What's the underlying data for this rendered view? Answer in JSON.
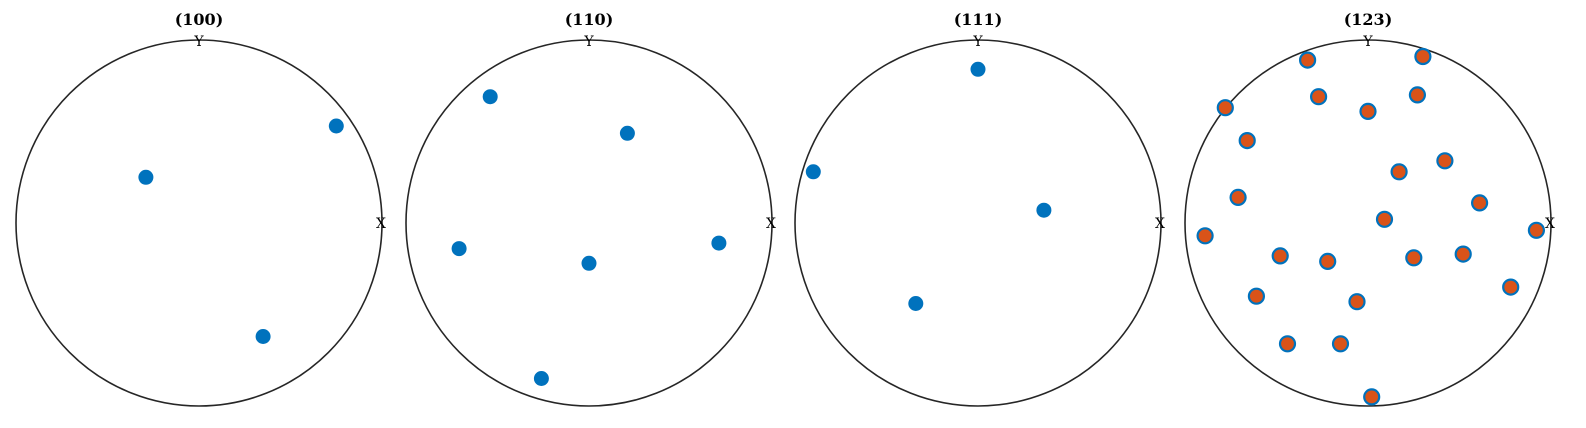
{
  "chart_data": [
    {
      "type": "scatter",
      "title": "(100)",
      "axis_labels": {
        "x": "X",
        "y": "Y"
      },
      "xlim": [
        -1,
        1
      ],
      "ylim": [
        -1,
        1
      ],
      "marker": {
        "face": "#0072bd",
        "edge": "#0072bd"
      },
      "points": [
        {
          "x": 0.75,
          "y": 0.53
        },
        {
          "x": -0.29,
          "y": 0.25
        },
        {
          "x": 0.35,
          "y": -0.62
        }
      ]
    },
    {
      "type": "scatter",
      "title": "(110)",
      "axis_labels": {
        "x": "X",
        "y": "Y"
      },
      "xlim": [
        -1,
        1
      ],
      "ylim": [
        -1,
        1
      ],
      "marker": {
        "face": "#0072bd",
        "edge": "#0072bd"
      },
      "points": [
        {
          "x": -0.54,
          "y": 0.69
        },
        {
          "x": 0.21,
          "y": 0.49
        },
        {
          "x": -0.71,
          "y": -0.14
        },
        {
          "x": 0.0,
          "y": -0.22
        },
        {
          "x": 0.71,
          "y": -0.11
        },
        {
          "x": -0.26,
          "y": -0.85
        }
      ]
    },
    {
      "type": "scatter",
      "title": "(111)",
      "axis_labels": {
        "x": "X",
        "y": "Y"
      },
      "xlim": [
        -1,
        1
      ],
      "ylim": [
        -1,
        1
      ],
      "marker": {
        "face": "#0072bd",
        "edge": "#0072bd"
      },
      "points": [
        {
          "x": 0.0,
          "y": 0.84
        },
        {
          "x": -0.9,
          "y": 0.28
        },
        {
          "x": 0.36,
          "y": 0.07
        },
        {
          "x": -0.34,
          "y": -0.44
        }
      ]
    },
    {
      "type": "scatter",
      "title": "(123)",
      "axis_labels": {
        "x": "X",
        "y": "Y"
      },
      "xlim": [
        -1,
        1
      ],
      "ylim": [
        -1,
        1
      ],
      "marker": {
        "face": "#d95319",
        "edge": "#0072bd"
      },
      "points": [
        {
          "x": -0.33,
          "y": 0.89
        },
        {
          "x": 0.3,
          "y": 0.91
        },
        {
          "x": -0.78,
          "y": 0.63
        },
        {
          "x": -0.27,
          "y": 0.69
        },
        {
          "x": 0.0,
          "y": 0.61
        },
        {
          "x": 0.27,
          "y": 0.7
        },
        {
          "x": -0.66,
          "y": 0.45
        },
        {
          "x": 0.17,
          "y": 0.28
        },
        {
          "x": 0.42,
          "y": 0.34
        },
        {
          "x": -0.71,
          "y": 0.14
        },
        {
          "x": 0.61,
          "y": 0.11
        },
        {
          "x": 0.09,
          "y": 0.02
        },
        {
          "x": -0.89,
          "y": -0.07
        },
        {
          "x": 0.92,
          "y": -0.04
        },
        {
          "x": -0.48,
          "y": -0.18
        },
        {
          "x": -0.22,
          "y": -0.21
        },
        {
          "x": 0.25,
          "y": -0.19
        },
        {
          "x": 0.52,
          "y": -0.17
        },
        {
          "x": -0.61,
          "y": -0.4
        },
        {
          "x": -0.06,
          "y": -0.43
        },
        {
          "x": 0.78,
          "y": -0.35
        },
        {
          "x": -0.44,
          "y": -0.66
        },
        {
          "x": -0.15,
          "y": -0.66
        },
        {
          "x": 0.02,
          "y": -0.95
        }
      ]
    }
  ]
}
